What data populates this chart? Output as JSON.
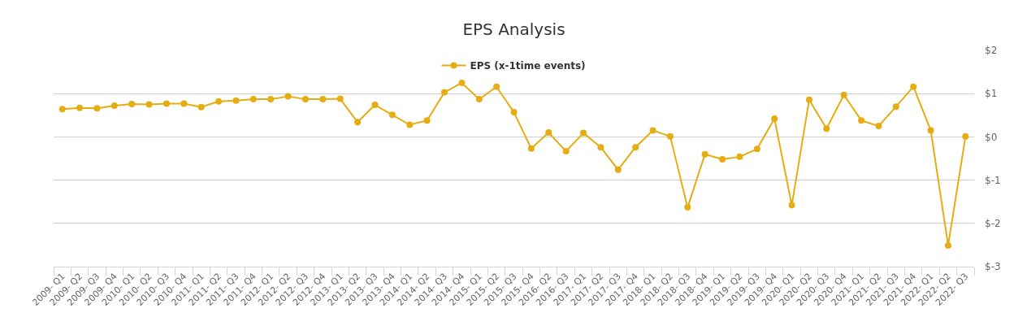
{
  "chart_data": {
    "type": "line",
    "title": "EPS Analysis",
    "categories": [
      "2009- Q1",
      "2009- Q2",
      "2009- Q3",
      "2009- Q4",
      "2010- Q1",
      "2010- Q2",
      "2010- Q3",
      "2010- Q4",
      "2011- Q1",
      "2011- Q2",
      "2011- Q3",
      "2011- Q4",
      "2012- Q1",
      "2012- Q2",
      "2012- Q3",
      "2012- Q4",
      "2013- Q1",
      "2013- Q2",
      "2013- Q3",
      "2013- Q4",
      "2014- Q1",
      "2014- Q2",
      "2014- Q3",
      "2014- Q4",
      "2015- Q1",
      "2015- Q2",
      "2015- Q3",
      "2015- Q4",
      "2016- Q2",
      "2016- Q3",
      "2017- Q1",
      "2017- Q2",
      "2017- Q3",
      "2017- Q4",
      "2018- Q1",
      "2018- Q2",
      "2018- Q3",
      "2018- Q4",
      "2019- Q1",
      "2019- Q2",
      "2019- Q3",
      "2019- Q4",
      "2020- Q1",
      "2020- Q2",
      "2020- Q3",
      "2020- Q4",
      "2021- Q1",
      "2021- Q2",
      "2021- Q3",
      "2021- Q4",
      "2022- Q1",
      "2022- Q2",
      "2022- Q3"
    ],
    "series": [
      {
        "name": "EPS (x-1time events)",
        "color": "#e5ad12",
        "values": [
          0.64,
          0.67,
          0.66,
          0.72,
          0.76,
          0.75,
          0.77,
          0.77,
          0.69,
          0.82,
          0.84,
          0.87,
          0.87,
          0.94,
          0.87,
          0.87,
          0.88,
          0.34,
          0.74,
          0.51,
          0.28,
          0.38,
          1.03,
          1.25,
          0.87,
          1.16,
          0.57,
          -0.27,
          0.1,
          -0.33,
          0.09,
          -0.24,
          -0.76,
          -0.24,
          0.15,
          0.01,
          -1.63,
          -0.4,
          -0.52,
          -0.46,
          -0.28,
          0.42,
          -1.58,
          0.86,
          0.19,
          0.97,
          0.38,
          0.25,
          0.7,
          1.16,
          0.15,
          -2.51,
          0.01
        ]
      }
    ],
    "ylim": [
      -3,
      2
    ],
    "yticks": [
      {
        "value": 2,
        "label": "$2"
      },
      {
        "value": 1,
        "label": "$1"
      },
      {
        "value": 0,
        "label": "$0"
      },
      {
        "value": -1,
        "label": "$-1"
      },
      {
        "value": -2,
        "label": "$-2"
      },
      {
        "value": -3,
        "label": "$-3"
      }
    ],
    "grid": "y",
    "legend": "top",
    "marker": "circle"
  }
}
